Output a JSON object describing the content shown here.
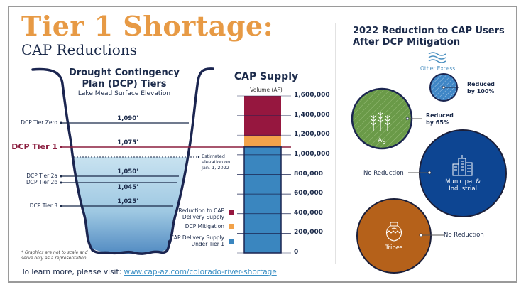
{
  "header": {
    "title": "Tier 1 Shortage:",
    "subtitle": "CAP Reductions"
  },
  "dcp": {
    "title_line1": "Drought Contingency",
    "title_line2": "Plan (DCP) Tiers",
    "subtitle": "Lake Mead Surface Elevation",
    "tiers": [
      {
        "name": "DCP Tier Zero",
        "elevation": "1,090'"
      },
      {
        "name": "DCP Tier 1",
        "elevation": "1,075'"
      },
      {
        "name": "DCP Tier 2a",
        "elevation": "1,050'"
      },
      {
        "name": "DCP Tier 2b",
        "elevation": "1,045'"
      },
      {
        "name": "DCP Tier 3",
        "elevation": "1,025'"
      }
    ],
    "estimate_note_line1": "Estimated",
    "estimate_note_line2": "elevation on",
    "estimate_note_line3": "Jan. 1, 2022",
    "footnote_line1": "* Graphics are not to scale and",
    "footnote_line2": "serve only as a representation."
  },
  "colors": {
    "title_orange": "#e79a45",
    "navy": "#1b2a4a",
    "tier1_red": "#8b1e3f",
    "reduction": "#96173f",
    "mitigation": "#f2a24a",
    "delivery": "#3a86bf",
    "water_light": "#c5e0ef",
    "water_dark": "#4d89c2",
    "ag_green": "#6a9a48",
    "mi_blue": "#0d4592",
    "tribes_brown": "#b5611a",
    "other_blue": "#3f86c6"
  },
  "chart_data": {
    "type": "bar",
    "title": "CAP Supply",
    "ylabel": "Volume (AF)",
    "categories": [
      "CAP Supply"
    ],
    "series": [
      {
        "name": "CAP Delivery Supply Under Tier 1",
        "values": [
          1080000
        ],
        "color": "#3a86bf"
      },
      {
        "name": "DCP Mitigation",
        "values": [
          110000
        ],
        "color": "#f2a24a"
      },
      {
        "name": "Reduction to CAP Delivery Supply",
        "values": [
          410000
        ],
        "color": "#96173f"
      }
    ],
    "stacked": true,
    "ylim": [
      0,
      1600000
    ],
    "yticks": [
      0,
      200000,
      400000,
      600000,
      800000,
      1000000,
      1200000,
      1400000,
      1600000
    ],
    "ytick_labels": [
      "0",
      "200,000",
      "400,000",
      "600,000",
      "800,000",
      "1,000,000",
      "1,200,000",
      "1,400,000",
      "1,600,000"
    ],
    "legend": [
      "Reduction to CAP Delivery Supply",
      "DCP Mitigation",
      "CAP Delivery Supply Under Tier 1"
    ],
    "legend_placement": "left"
  },
  "legend": {
    "reduction_line1": "Reduction to CAP",
    "reduction_line2": "Delivery Supply",
    "mitigation": "DCP Mitigation",
    "delivery_line1": "CAP Delivery Supply",
    "delivery_line2": "Under Tier 1"
  },
  "users": {
    "title_line1": "2022 Reduction to CAP Users",
    "title_line2": "After DCP Mitigation",
    "groups": [
      {
        "name": "Other Excess",
        "icon": "water-waves-icon",
        "reduction_line1": "Reduced",
        "reduction_line2": "by 100%"
      },
      {
        "name": "Ag",
        "icon": "wheat-icon",
        "reduction_line1": "Reduced",
        "reduction_line2": "by 65%"
      },
      {
        "name_line1": "Municipal &",
        "name_line2": "Industrial",
        "icon": "city-buildings-icon",
        "reduction": "No Reduction"
      },
      {
        "name": "Tribes",
        "icon": "pottery-icon",
        "reduction": "No Reduction"
      }
    ]
  },
  "footer": {
    "prefix": "To learn more, please visit: ",
    "link": "www.cap-az.com/colorado-river-shortage"
  }
}
